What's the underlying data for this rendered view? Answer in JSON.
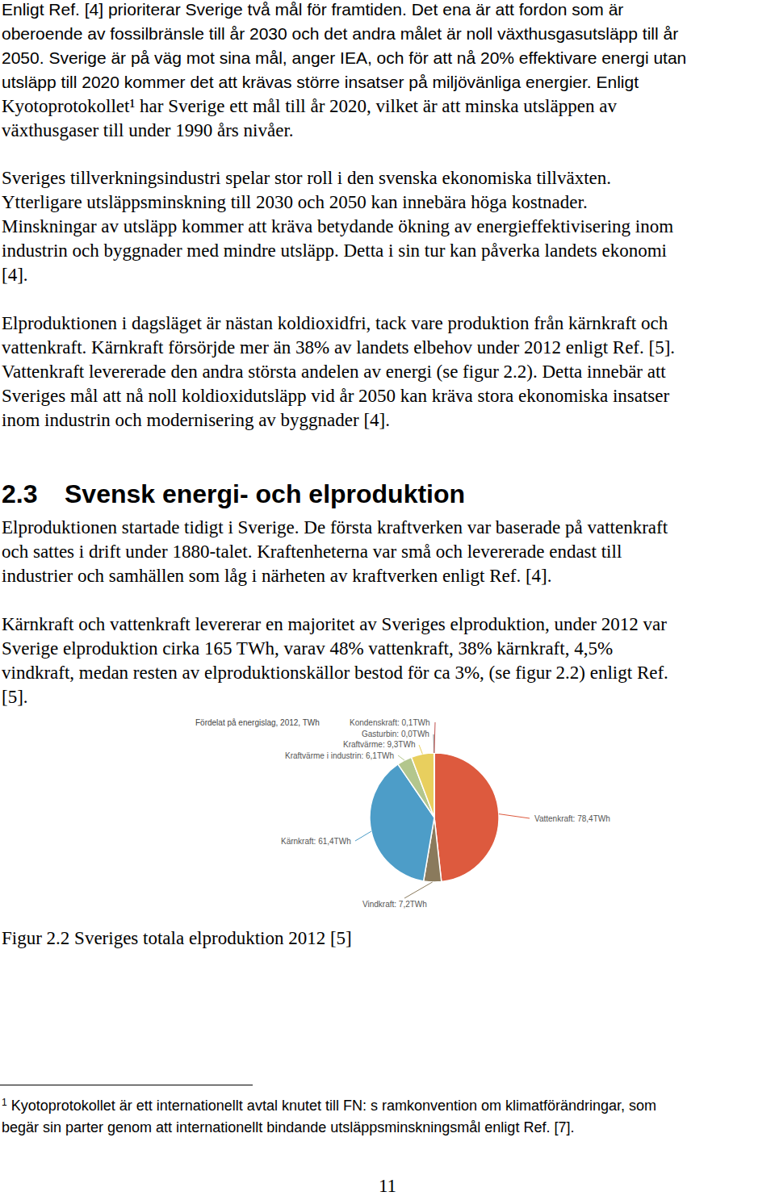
{
  "document": {
    "paragraphs_before": [
      [
        "Enligt Ref. [4] prioriterar Sverige två mål för framtiden. Det ena är att fordon som är",
        "oberoende av fossilbränsle till år 2030 och det andra målet är noll växthusgasutsläpp till år",
        "2050. Sverige är på väg mot sina mål, anger IEA, och för att nå 20% effektivare energi utan",
        "utsläpp till 2020 kommer det att krävas större insatser på miljövänliga energier. Enligt",
        "Kyotoprotokollet¹ har Sverige ett mål till år 2020, vilket är att minska utsläppen av",
        "växthusgaser till under 1990 års nivåer."
      ],
      [
        "Sveriges tillverkningsindustri spelar stor roll i den svenska ekonomiska tillväxten.",
        "Ytterligare utsläppsminskning till 2030 och 2050 kan innebära höga kostnader.",
        "Minskningar av utsläpp kommer att kräva betydande ökning av energieffektivisering inom",
        "industrin och byggnader med mindre utsläpp. Detta i sin tur kan påverka landets ekonomi",
        "[4]."
      ],
      [
        "Elproduktionen i dagsläget är nästan koldioxidfri, tack vare produktion från kärnkraft och",
        "vattenkraft. Kärnkraft försörjde mer än 38% av landets elbehov under 2012 enligt Ref. [5].",
        "Vattenkraft levererade den andra största andelen av energi (se figur 2.2). Detta innebär att",
        "Sveriges mål att nå noll koldioxidutsläpp vid år 2050 kan kräva stora ekonomiska insatser",
        "inom industrin och modernisering av byggnader [4]."
      ]
    ],
    "heading": {
      "number": "2.3",
      "text": "Svensk energi- och elproduktion"
    },
    "paragraphs_after": [
      [
        "Elproduktionen startade tidigt i Sverige. De första kraftverken var baserade på vattenkraft",
        "och sattes i drift under 1880-talet. Kraftenheterna var små och levererade endast till",
        "industrier och samhällen som låg i närheten av kraftverken enligt Ref. [4]."
      ],
      [
        "Kärnkraft och vattenkraft levererar en majoritet av Sveriges elproduktion, under 2012 var",
        "Sverige elproduktion cirka 165 TWh, varav 48% vattenkraft, 38% kärnkraft, 4,5%",
        "vindkraft, medan resten av elproduktionskällor bestod för ca 3%, (se figur 2.2) enligt Ref.",
        "[5]."
      ]
    ],
    "figure_caption": "Figur 2.2 Sveriges totala elproduktion 2012 [5]",
    "footnote": {
      "mark": "1",
      "lines": [
        "Kyotoprotokollet är ett internationellt avtal knutet till FN: s ramkonvention om klimatförändringar, som",
        "begär sin parter genom att internationellt bindande utsläppsminskningsmål enligt Ref. [7]."
      ]
    },
    "page_number": "11"
  },
  "chart_data": {
    "type": "pie",
    "title": "Fördelat på energislag, 2012, TWh",
    "categories": [
      "Vattenkraft",
      "Vindkraft",
      "Kärnkraft",
      "Kraftvärme i industrin",
      "Kraftvärme",
      "Gasturbin",
      "Kondenskraft"
    ],
    "values": [
      78.4,
      7.2,
      61.4,
      6.1,
      9.3,
      0.0,
      0.1
    ],
    "value_labels": [
      "Vattenkraft: 78,4TWh",
      "Vindkraft: 7,2TWh",
      "Kärnkraft: 61,4TWh",
      "Kraftvärme i industrin: 6,1TWh",
      "Kraftvärme: 9,3TWh",
      "Gasturbin: 0,0TWh",
      "Kondenskraft: 0,1TWh"
    ],
    "colors": [
      "#dd5a3e",
      "#8a7a5c",
      "#4d9dc8",
      "#b3c68d",
      "#e8cf5e",
      "#7f7f7f",
      "#c0504d"
    ],
    "data_labels": true
  }
}
